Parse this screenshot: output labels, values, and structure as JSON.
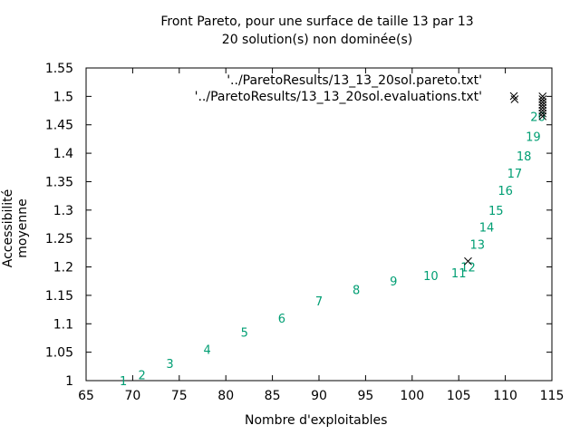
{
  "chart_data": {
    "type": "scatter",
    "title": "Front Pareto, pour une surface de taille 13 par 13",
    "subtitle": "20 solution(s) non dominée(s)",
    "xlabel": "Nombre d'exploitables",
    "ylabel": "Accessibilité moyenne",
    "xlim": [
      65,
      115
    ],
    "ylim": [
      1,
      1.55
    ],
    "x_ticks": [
      "65",
      "70",
      "75",
      "80",
      "85",
      "90",
      "95",
      "100",
      "105",
      "110",
      "115"
    ],
    "y_ticks": [
      "1",
      "1.05",
      "1.1",
      "1.15",
      "1.2",
      "1.25",
      "1.3",
      "1.35",
      "1.4",
      "1.45",
      "1.5",
      "1.55"
    ],
    "grid": false,
    "legend_position": "top-right",
    "series": [
      {
        "name": "'../ParetoResults/13_13_20sol.pareto.txt'",
        "color": "#009e73",
        "marker": "label",
        "points": [
          {
            "label": "1",
            "x": 69,
            "y": 1.0
          },
          {
            "label": "2",
            "x": 71,
            "y": 1.01
          },
          {
            "label": "3",
            "x": 74,
            "y": 1.03
          },
          {
            "label": "4",
            "x": 78,
            "y": 1.055
          },
          {
            "label": "5",
            "x": 82,
            "y": 1.085
          },
          {
            "label": "6",
            "x": 86,
            "y": 1.11
          },
          {
            "label": "7",
            "x": 90,
            "y": 1.14
          },
          {
            "label": "8",
            "x": 94,
            "y": 1.16
          },
          {
            "label": "9",
            "x": 98,
            "y": 1.175
          },
          {
            "label": "10",
            "x": 102,
            "y": 1.185
          },
          {
            "label": "11",
            "x": 105,
            "y": 1.19
          },
          {
            "label": "12",
            "x": 106,
            "y": 1.2
          },
          {
            "label": "13",
            "x": 107,
            "y": 1.24
          },
          {
            "label": "14",
            "x": 108,
            "y": 1.27
          },
          {
            "label": "15",
            "x": 109,
            "y": 1.3
          },
          {
            "label": "16",
            "x": 110,
            "y": 1.335
          },
          {
            "label": "17",
            "x": 111,
            "y": 1.365
          },
          {
            "label": "18",
            "x": 112,
            "y": 1.395
          },
          {
            "label": "19",
            "x": 113,
            "y": 1.43
          },
          {
            "label": "20",
            "x": 113.5,
            "y": 1.465
          }
        ]
      },
      {
        "name": "'../ParetoResults/13_13_20sol.evaluations.txt'",
        "color": "#000000",
        "marker": "x",
        "points": [
          {
            "x": 106,
            "y": 1.21
          },
          {
            "x": 111,
            "y": 1.495
          },
          {
            "x": 114,
            "y": 1.465
          },
          {
            "x": 114,
            "y": 1.47
          },
          {
            "x": 114,
            "y": 1.475
          },
          {
            "x": 114,
            "y": 1.48
          },
          {
            "x": 114,
            "y": 1.485
          },
          {
            "x": 114,
            "y": 1.49
          },
          {
            "x": 114,
            "y": 1.495
          },
          {
            "x": 114,
            "y": 1.5
          }
        ]
      }
    ]
  }
}
